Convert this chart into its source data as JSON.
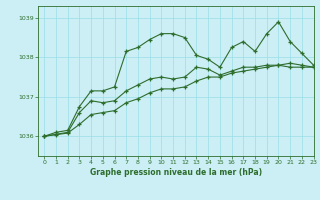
{
  "title": "Graphe pression niveau de la mer (hPa)",
  "bg_color": "#cceef5",
  "grid_color": "#99dde8",
  "line_color": "#2d6e2d",
  "xlim": [
    -0.5,
    23
  ],
  "ylim": [
    1035.5,
    1039.3
  ],
  "yticks": [
    1036,
    1037,
    1038,
    1039
  ],
  "xticks": [
    0,
    1,
    2,
    3,
    4,
    5,
    6,
    7,
    8,
    9,
    10,
    11,
    12,
    13,
    14,
    15,
    16,
    17,
    18,
    19,
    20,
    21,
    22,
    23
  ],
  "series1": [
    1036.0,
    1036.1,
    1036.15,
    1036.75,
    1037.15,
    1037.15,
    1037.25,
    1038.15,
    1038.25,
    1038.45,
    1038.6,
    1038.6,
    1038.5,
    1038.05,
    1037.95,
    1037.75,
    1038.25,
    1038.4,
    1038.15,
    1038.6,
    1038.9,
    1038.4,
    1038.1,
    1037.8
  ],
  "series2": [
    1036.0,
    1036.05,
    1036.1,
    1036.6,
    1036.9,
    1036.85,
    1036.9,
    1037.15,
    1037.3,
    1037.45,
    1037.5,
    1037.45,
    1037.5,
    1037.75,
    1037.7,
    1037.55,
    1037.65,
    1037.75,
    1037.75,
    1037.8,
    1037.8,
    1037.75,
    1037.75,
    1037.75
  ],
  "series3": [
    1036.0,
    1036.04,
    1036.08,
    1036.3,
    1036.55,
    1036.6,
    1036.65,
    1036.85,
    1036.95,
    1037.1,
    1037.2,
    1037.2,
    1037.25,
    1037.4,
    1037.5,
    1037.5,
    1037.6,
    1037.65,
    1037.7,
    1037.75,
    1037.8,
    1037.85,
    1037.8,
    1037.75
  ]
}
